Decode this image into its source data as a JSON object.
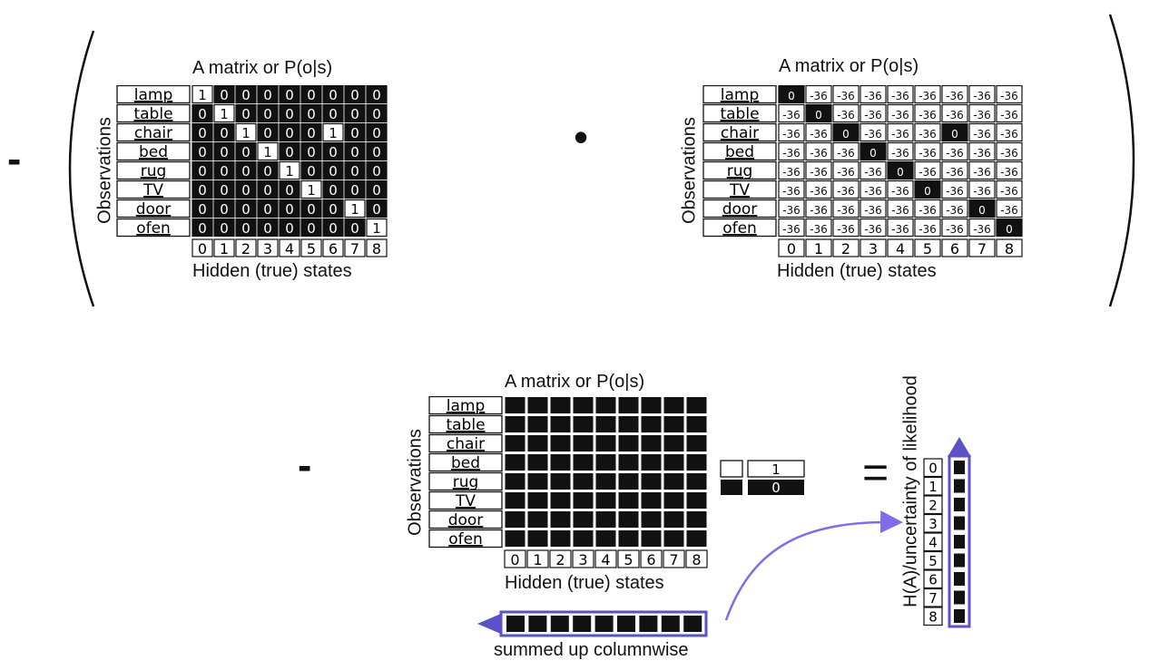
{
  "operators": {
    "minus_top": "-",
    "dot": "•",
    "minus_bottom": "-",
    "equals": "="
  },
  "observations": [
    "lamp",
    "table",
    "chair",
    "bed",
    "rug",
    "TV",
    "door",
    "ofen"
  ],
  "states": [
    "0",
    "1",
    "2",
    "3",
    "4",
    "5",
    "6",
    "7",
    "8"
  ],
  "matrix1": {
    "title": "A matrix or P(o|s)",
    "ylabel": "Observations",
    "xlabel": "Hidden (true) states",
    "values": [
      [
        "1",
        "0",
        "0",
        "0",
        "0",
        "0",
        "0",
        "0",
        "0"
      ],
      [
        "0",
        "1",
        "0",
        "0",
        "0",
        "0",
        "0",
        "0",
        "0"
      ],
      [
        "0",
        "0",
        "1",
        "0",
        "0",
        "0",
        "1",
        "0",
        "0"
      ],
      [
        "0",
        "0",
        "0",
        "1",
        "0",
        "0",
        "0",
        "0",
        "0"
      ],
      [
        "0",
        "0",
        "0",
        "0",
        "1",
        "0",
        "0",
        "0",
        "0"
      ],
      [
        "0",
        "0",
        "0",
        "0",
        "0",
        "1",
        "0",
        "0",
        "0"
      ],
      [
        "0",
        "0",
        "0",
        "0",
        "0",
        "0",
        "0",
        "1",
        "0"
      ],
      [
        "0",
        "0",
        "0",
        "0",
        "0",
        "0",
        "0",
        "0",
        "1"
      ]
    ]
  },
  "matrix2": {
    "title": "A matrix or P(o|s)",
    "ylabel": "Observations",
    "xlabel": "Hidden (true) states",
    "values": [
      [
        "0",
        "-36",
        "-36",
        "-36",
        "-36",
        "-36",
        "-36",
        "-36",
        "-36"
      ],
      [
        "-36",
        "0",
        "-36",
        "-36",
        "-36",
        "-36",
        "-36",
        "-36",
        "-36"
      ],
      [
        "-36",
        "-36",
        "0",
        "-36",
        "-36",
        "-36",
        "0",
        "-36",
        "-36"
      ],
      [
        "-36",
        "-36",
        "-36",
        "0",
        "-36",
        "-36",
        "-36",
        "-36",
        "-36"
      ],
      [
        "-36",
        "-36",
        "-36",
        "-36",
        "0",
        "-36",
        "-36",
        "-36",
        "-36"
      ],
      [
        "-36",
        "-36",
        "-36",
        "-36",
        "-36",
        "0",
        "-36",
        "-36",
        "-36"
      ],
      [
        "-36",
        "-36",
        "-36",
        "-36",
        "-36",
        "-36",
        "-36",
        "0",
        "-36"
      ],
      [
        "-36",
        "-36",
        "-36",
        "-36",
        "-36",
        "-36",
        "-36",
        "-36",
        "0"
      ]
    ]
  },
  "matrix3": {
    "title": "A matrix or P(o|s)",
    "ylabel": "Observations",
    "xlabel": "Hidden (true) states"
  },
  "legend": {
    "white_value": "1",
    "black_value": "0"
  },
  "summed_label": "summed up columnwise",
  "entropy": {
    "label": "H(A)/uncertainty of likelihood",
    "indices": [
      "0",
      "1",
      "2",
      "3",
      "4",
      "5",
      "6",
      "7",
      "8"
    ]
  },
  "colors": {
    "accent": "#5b52c8",
    "cell_black": "#111111",
    "curve": "#7c6ee6"
  }
}
